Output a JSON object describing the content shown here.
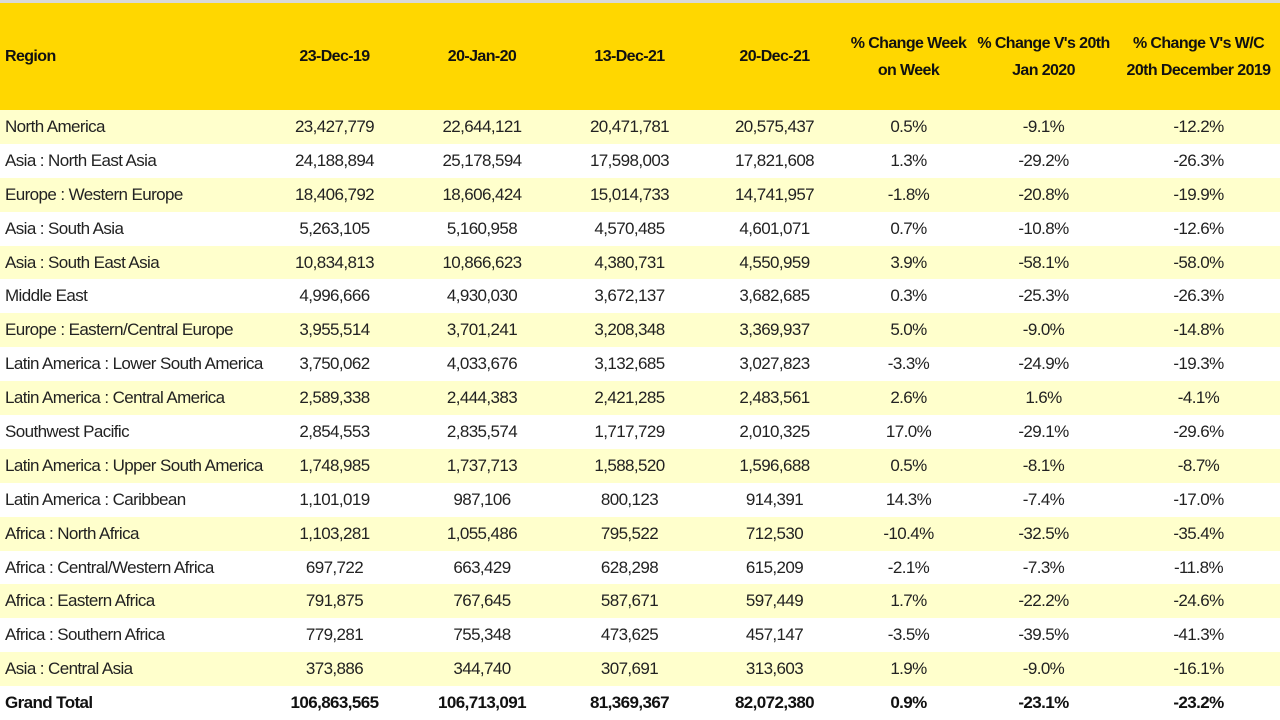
{
  "headers": [
    "Region",
    "23-Dec-19",
    "20-Jan-20",
    "13-Dec-21",
    "20-Dec-21",
    "% Change Week on Week",
    "% Change V's 20th Jan 2020",
    "% Change V's W/C 20th December 2019"
  ],
  "rows": [
    [
      "North America",
      "23,427,779",
      "22,644,121",
      "20,471,781",
      "20,575,437",
      "0.5%",
      "-9.1%",
      "-12.2%"
    ],
    [
      "Asia : North East Asia",
      "24,188,894",
      "25,178,594",
      "17,598,003",
      "17,821,608",
      "1.3%",
      "-29.2%",
      "-26.3%"
    ],
    [
      "Europe : Western Europe",
      "18,406,792",
      "18,606,424",
      "15,014,733",
      "14,741,957",
      "-1.8%",
      "-20.8%",
      "-19.9%"
    ],
    [
      "Asia : South Asia",
      "5,263,105",
      "5,160,958",
      "4,570,485",
      "4,601,071",
      "0.7%",
      "-10.8%",
      "-12.6%"
    ],
    [
      "Asia : South East Asia",
      "10,834,813",
      "10,866,623",
      "4,380,731",
      "4,550,959",
      "3.9%",
      "-58.1%",
      "-58.0%"
    ],
    [
      "Middle East",
      "4,996,666",
      "4,930,030",
      "3,672,137",
      "3,682,685",
      "0.3%",
      "-25.3%",
      "-26.3%"
    ],
    [
      "Europe : Eastern/Central Europe",
      "3,955,514",
      "3,701,241",
      "3,208,348",
      "3,369,937",
      "5.0%",
      "-9.0%",
      "-14.8%"
    ],
    [
      "Latin America : Lower South America",
      "3,750,062",
      "4,033,676",
      "3,132,685",
      "3,027,823",
      "-3.3%",
      "-24.9%",
      "-19.3%"
    ],
    [
      "Latin America : Central America",
      "2,589,338",
      "2,444,383",
      "2,421,285",
      "2,483,561",
      "2.6%",
      "1.6%",
      "-4.1%"
    ],
    [
      "Southwest Pacific",
      "2,854,553",
      "2,835,574",
      "1,717,729",
      "2,010,325",
      "17.0%",
      "-29.1%",
      "-29.6%"
    ],
    [
      "Latin America : Upper South America",
      "1,748,985",
      "1,737,713",
      "1,588,520",
      "1,596,688",
      "0.5%",
      "-8.1%",
      "-8.7%"
    ],
    [
      "Latin America : Caribbean",
      "1,101,019",
      "987,106",
      "800,123",
      "914,391",
      "14.3%",
      "-7.4%",
      "-17.0%"
    ],
    [
      "Africa : North Africa",
      "1,103,281",
      "1,055,486",
      "795,522",
      "712,530",
      "-10.4%",
      "-32.5%",
      "-35.4%"
    ],
    [
      "Africa : Central/Western Africa",
      "697,722",
      "663,429",
      "628,298",
      "615,209",
      "-2.1%",
      "-7.3%",
      "-11.8%"
    ],
    [
      "Africa : Eastern Africa",
      "791,875",
      "767,645",
      "587,671",
      "597,449",
      "1.7%",
      "-22.2%",
      "-24.6%"
    ],
    [
      "Africa : Southern Africa",
      "779,281",
      "755,348",
      "473,625",
      "457,147",
      "-3.5%",
      "-39.5%",
      "-41.3%"
    ],
    [
      "Asia : Central Asia",
      "373,886",
      "344,740",
      "307,691",
      "313,603",
      "1.9%",
      "-9.0%",
      "-16.1%"
    ]
  ],
  "total": [
    "Grand Total",
    "106,863,565",
    "106,713,091",
    "81,369,367",
    "82,072,380",
    "0.9%",
    "-23.1%",
    "-23.2%"
  ],
  "colors": {
    "header": "#FFD700",
    "band": "#FFFFCC"
  }
}
